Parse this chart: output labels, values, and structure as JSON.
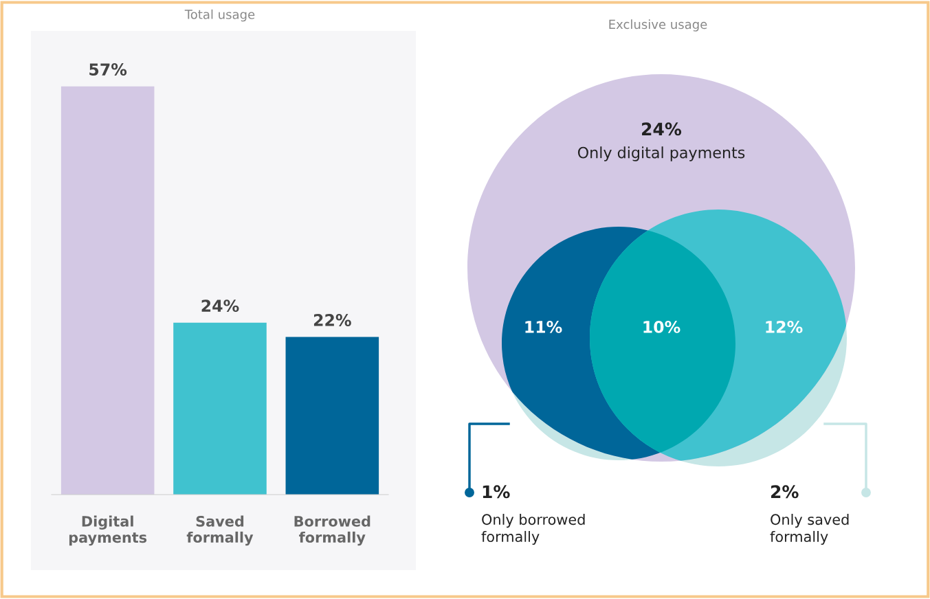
{
  "chart_data": [
    {
      "type": "bar",
      "title": "Total usage",
      "categories": [
        "Digital\npayments",
        "Saved\nformally",
        "Borrowed\nformally"
      ],
      "values": [
        57,
        24,
        22
      ],
      "colors": [
        "#d3c8e4",
        "#40c2cf",
        "#006699"
      ],
      "value_labels": [
        "57%",
        "24%",
        "22%"
      ]
    },
    {
      "type": "other",
      "title": "Exclusive usage",
      "categories": [
        "Only digital payments",
        null,
        null,
        null,
        "Only borrowed\nformally",
        "Only saved\nformally"
      ],
      "values": [
        24,
        11,
        10,
        12,
        1,
        2
      ],
      "value_labels": [
        "24%",
        "11%",
        "10%",
        "12%",
        "1%",
        "2%"
      ],
      "colors": [
        "#d3c8e4",
        "#006699",
        "#00a8b0",
        "#40c2cf",
        "#c6e6e6",
        "#c6e6e6"
      ]
    }
  ]
}
